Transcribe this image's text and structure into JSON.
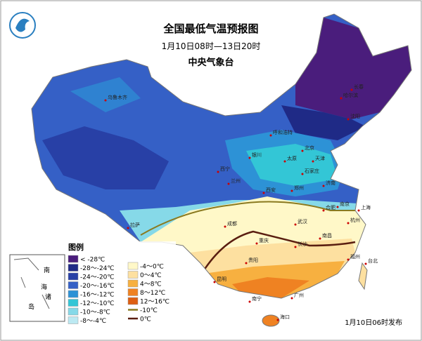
{
  "header": {
    "title": "全国最低气温预报图",
    "period": "1月10日08时—13日20时",
    "agency": "中央气象台"
  },
  "legend": {
    "title": "图例",
    "items": [
      {
        "label": "< -28℃",
        "color": "#4a1d7c"
      },
      {
        "label": "-28～-24℃",
        "color": "#1f2a86"
      },
      {
        "label": "-24～-20℃",
        "color": "#2840a6"
      },
      {
        "label": "-20～-16℃",
        "color": "#3560c6"
      },
      {
        "label": "-16～-12℃",
        "color": "#2d92d6"
      },
      {
        "label": "-12～-10℃",
        "color": "#33c6d6"
      },
      {
        "label": "-10～-8℃",
        "color": "#86d9e8"
      },
      {
        "label": "-8～-4℃",
        "color": "#bce9f2"
      },
      {
        "label": "-4～0℃",
        "color": "#fff8c8"
      },
      {
        "label": "0～4℃",
        "color": "#fde0a0"
      },
      {
        "label": "4～8℃",
        "color": "#f7b040"
      },
      {
        "label": "8～12℃",
        "color": "#ef8222"
      },
      {
        "label": "12～16℃",
        "color": "#de5f12"
      }
    ],
    "lines": [
      {
        "label": "-10℃",
        "color": "#8a7a20"
      },
      {
        "label": "0℃",
        "color": "#5a1e10"
      }
    ]
  },
  "inset": {
    "labels": [
      "南",
      "海",
      "诸",
      "岛"
    ]
  },
  "cities": [
    "乌鲁木齐",
    "哈尔滨",
    "长春",
    "沈阳",
    "呼和浩特",
    "北京",
    "天津",
    "石家庄",
    "太原",
    "银川",
    "西宁",
    "兰州",
    "济南",
    "郑州",
    "西安",
    "南京",
    "合肥",
    "上海",
    "杭州",
    "武汉",
    "成都",
    "重庆",
    "拉萨",
    "长沙",
    "南昌",
    "贵阳",
    "福州",
    "台北",
    "昆明",
    "南宁",
    "广州",
    "海口"
  ],
  "footer": {
    "issued": "1月10日06时发布"
  }
}
